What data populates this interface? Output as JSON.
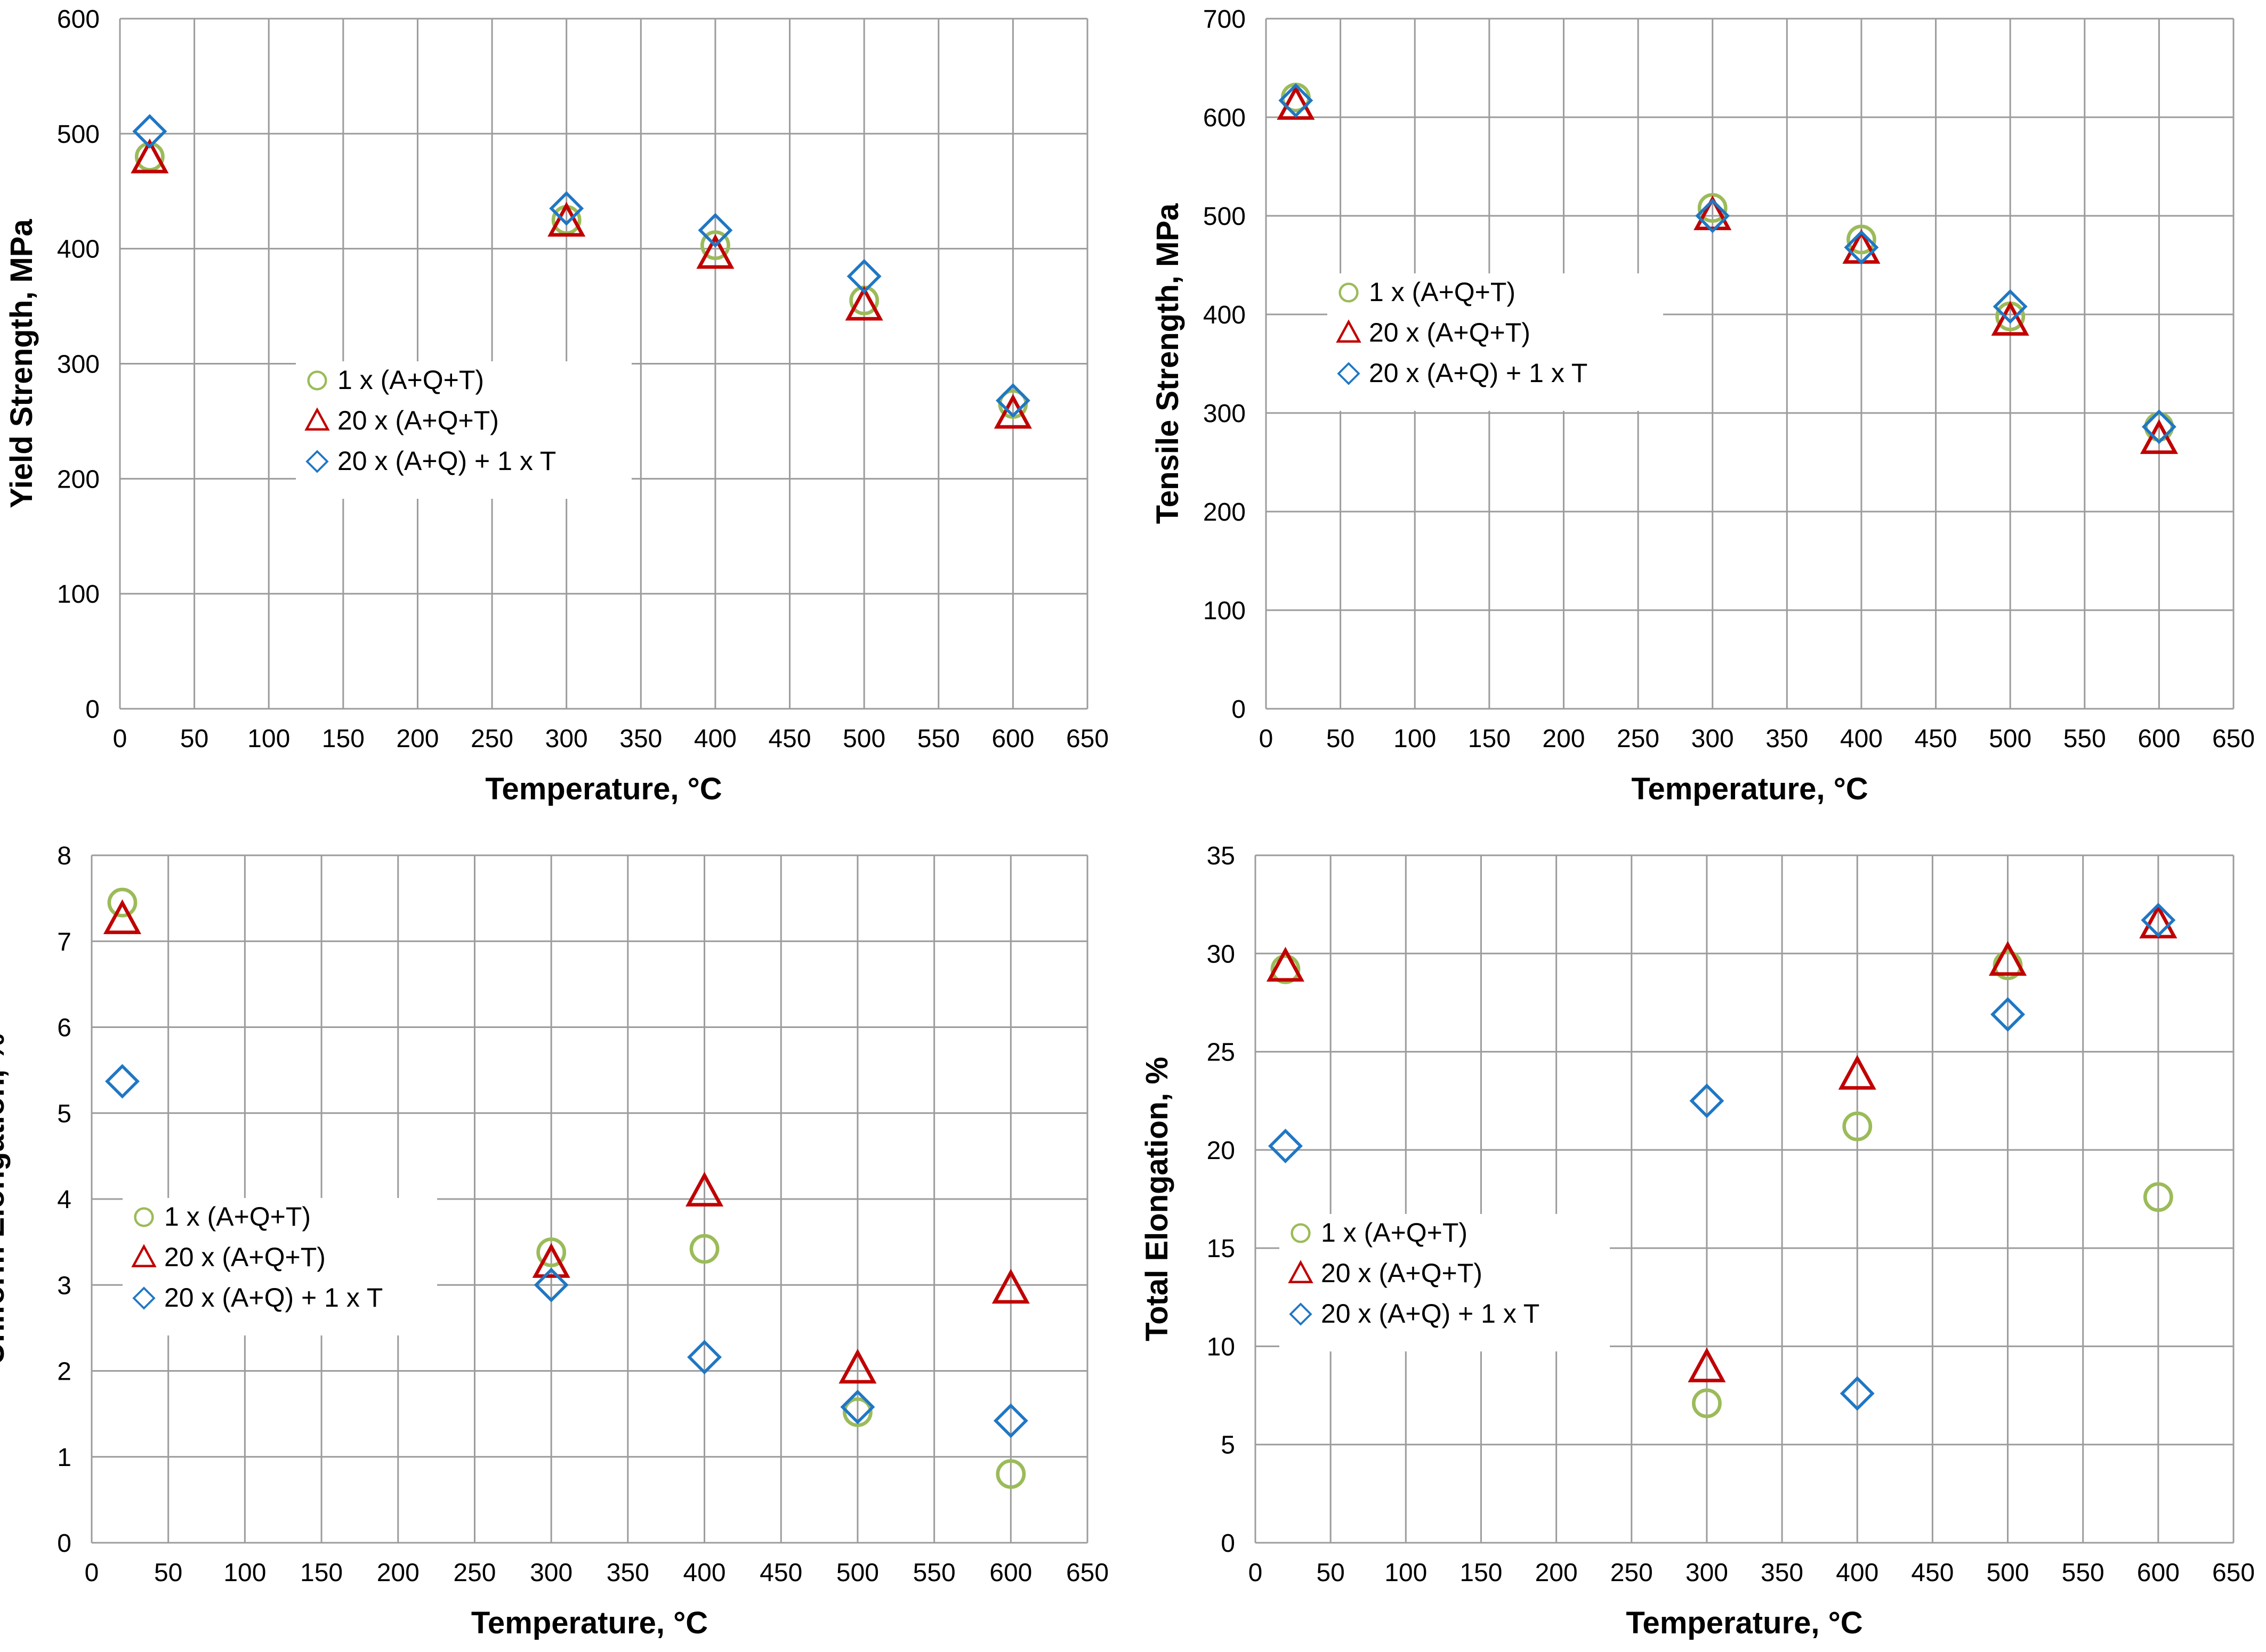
{
  "figure": {
    "background": "#ffffff",
    "grid_color": "#9c9c9c"
  },
  "series_styles": [
    {
      "name": "1 x (A+Q+T)",
      "marker": "circle",
      "color": "#9bbb59"
    },
    {
      "name": "20 x (A+Q+T)",
      "marker": "triangle",
      "color": "#c00000"
    },
    {
      "name": "20 x (A+Q) + 1 x T",
      "marker": "diamond",
      "color": "#1f77c4"
    }
  ],
  "chart_data": [
    {
      "type": "scatter",
      "title": "",
      "xlabel": "Temperature, °C",
      "ylabel": "Yield Strength, MPa",
      "xlim": [
        0,
        650
      ],
      "ylim": [
        0,
        600
      ],
      "xticks": [
        0,
        50,
        100,
        150,
        200,
        250,
        300,
        350,
        400,
        450,
        500,
        550,
        600,
        650
      ],
      "yticks": [
        0,
        100,
        200,
        300,
        400,
        500,
        600
      ],
      "grid": true,
      "legend_position": "center-left",
      "series": [
        {
          "name": "1 x (A+Q+T)",
          "x": [
            20,
            300,
            400,
            500,
            600
          ],
          "y": [
            480,
            425,
            403,
            355,
            265
          ]
        },
        {
          "name": "20 x (A+Q+T)",
          "x": [
            20,
            300,
            400,
            500,
            600
          ],
          "y": [
            478,
            423,
            395,
            350,
            256
          ]
        },
        {
          "name": "20 x (A+Q) + 1 x T",
          "x": [
            20,
            300,
            400,
            500,
            600
          ],
          "y": [
            502,
            435,
            416,
            376,
            268
          ]
        }
      ]
    },
    {
      "type": "scatter",
      "title": "",
      "xlabel": "Temperature, °C",
      "ylabel": "Tensile Strength, MPa",
      "xlim": [
        0,
        650
      ],
      "ylim": [
        0,
        700
      ],
      "xticks": [
        0,
        50,
        100,
        150,
        200,
        250,
        300,
        350,
        400,
        450,
        500,
        550,
        600,
        650
      ],
      "yticks": [
        0,
        100,
        200,
        300,
        400,
        500,
        600,
        700
      ],
      "grid": true,
      "legend_position": "center-left",
      "series": [
        {
          "name": "1 x (A+Q+T)",
          "x": [
            20,
            300,
            400,
            500,
            600
          ],
          "y": [
            620,
            508,
            476,
            398,
            286
          ]
        },
        {
          "name": "20 x (A+Q+T)",
          "x": [
            20,
            300,
            400,
            500,
            600
          ],
          "y": [
            612,
            500,
            466,
            393,
            273
          ]
        },
        {
          "name": "20 x (A+Q) + 1 x T",
          "x": [
            20,
            300,
            400,
            500,
            600
          ],
          "y": [
            617,
            500,
            468,
            408,
            286
          ]
        }
      ]
    },
    {
      "type": "scatter",
      "title": "",
      "xlabel": "Temperature, °C",
      "ylabel": "Uniform Elongation, %",
      "xlim": [
        0,
        650
      ],
      "ylim": [
        0,
        8
      ],
      "xticks": [
        0,
        50,
        100,
        150,
        200,
        250,
        300,
        350,
        400,
        450,
        500,
        550,
        600,
        650
      ],
      "yticks": [
        0,
        1,
        2,
        3,
        4,
        5,
        6,
        7,
        8
      ],
      "grid": true,
      "legend_position": "center-left",
      "series": [
        {
          "name": "1 x (A+Q+T)",
          "x": [
            20,
            300,
            400,
            500,
            600
          ],
          "y": [
            7.45,
            3.38,
            3.42,
            1.52,
            0.8
          ]
        },
        {
          "name": "20 x (A+Q+T)",
          "x": [
            20,
            300,
            400,
            500,
            600
          ],
          "y": [
            7.25,
            3.25,
            4.08,
            2.02,
            2.95
          ]
        },
        {
          "name": "20 x (A+Q) + 1 x T",
          "x": [
            20,
            300,
            400,
            500,
            600
          ],
          "y": [
            5.37,
            3.0,
            2.16,
            1.58,
            1.42
          ]
        }
      ]
    },
    {
      "type": "scatter",
      "title": "",
      "xlabel": "Temperature, °C",
      "ylabel": "Total Elongation, %",
      "xlim": [
        0,
        650
      ],
      "ylim": [
        0,
        35
      ],
      "xticks": [
        0,
        50,
        100,
        150,
        200,
        250,
        300,
        350,
        400,
        450,
        500,
        550,
        600,
        650
      ],
      "yticks": [
        0,
        5,
        10,
        15,
        20,
        25,
        30,
        35
      ],
      "grid": true,
      "legend_position": "lower-left",
      "series": [
        {
          "name": "1 x (A+Q+T)",
          "x": [
            20,
            300,
            400,
            500,
            600
          ],
          "y": [
            29.2,
            7.1,
            21.2,
            29.4,
            17.6
          ]
        },
        {
          "name": "20 x (A+Q+T)",
          "x": [
            20,
            300,
            400,
            500,
            600
          ],
          "y": [
            29.3,
            8.9,
            23.8,
            29.6,
            31.5
          ]
        },
        {
          "name": "20 x (A+Q) + 1 x T",
          "x": [
            20,
            300,
            400,
            500,
            600
          ],
          "y": [
            20.2,
            22.5,
            7.6,
            26.9,
            31.7
          ]
        }
      ]
    }
  ]
}
